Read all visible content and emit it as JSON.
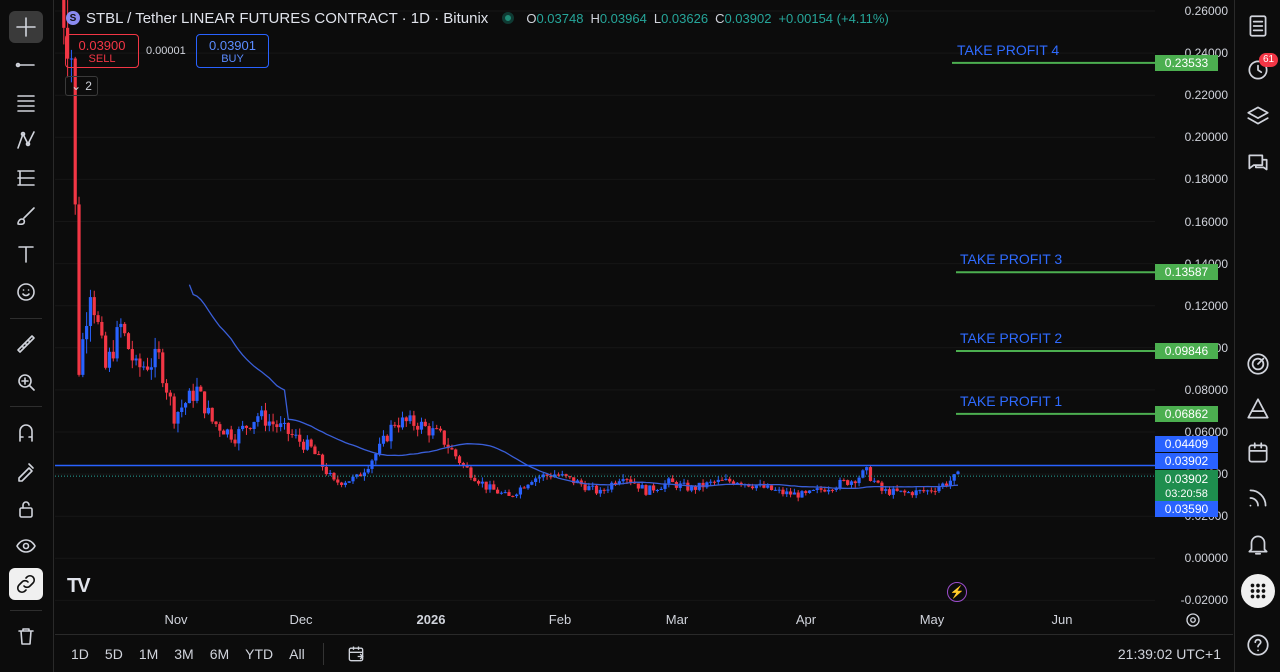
{
  "header": {
    "symbol_icon": "S",
    "title": "STBL / Tether LINEAR FUTURES CONTRACT · 1D · Bitunix",
    "ohlc": [
      {
        "k": "O",
        "v": "0.03748"
      },
      {
        "k": "H",
        "v": "0.03964"
      },
      {
        "k": "L",
        "v": "0.03626"
      },
      {
        "k": "C",
        "v": "0.03902"
      },
      {
        "k": "",
        "v": "+0.00154 (+4.11%)"
      }
    ]
  },
  "trade": {
    "sell_price": "0.03900",
    "sell_label": "SELL",
    "spread": "0.00001",
    "buy_price": "0.03901",
    "buy_label": "BUY",
    "collapse_count": "2"
  },
  "y_axis": [
    "0.26000",
    "0.24000",
    "0.22000",
    "0.20000",
    "0.18000",
    "0.16000",
    "0.14000",
    "0.12000",
    "0.10000",
    "0.08000",
    "0.06000",
    "0.04000",
    "0.02000",
    "0.00000",
    "-0.02000"
  ],
  "x_axis": [
    "Nov",
    "Dec",
    "2026",
    "Feb",
    "Mar",
    "Apr",
    "May",
    "Jun"
  ],
  "take_profits": [
    {
      "label": "TAKE PROFIT 4",
      "price": "0.23533"
    },
    {
      "label": "TAKE PROFIT 3",
      "price": "0.13587"
    },
    {
      "label": "TAKE PROFIT 2",
      "price": "0.09846"
    },
    {
      "label": "TAKE PROFIT 1",
      "price": "0.06862"
    }
  ],
  "price_tags": {
    "hline": "0.04409",
    "last": "0.03902",
    "current": "0.03902",
    "countdown": "03:20:58",
    "low": "0.03590"
  },
  "logo": "TV",
  "bottom": {
    "ranges": [
      "1D",
      "5D",
      "1M",
      "3M",
      "6M",
      "YTD",
      "All"
    ],
    "clock": "21:39:02 UTC+1"
  },
  "sidebar": {
    "alerts_badge": "61"
  },
  "colors": {
    "up": "#2962ff",
    "down": "#f23645",
    "take_profit_line": "#4caf50",
    "horizontal_line": "#2962ff",
    "ma": "#3a5fd9"
  },
  "chart_data": {
    "type": "candlestick",
    "title": "STBL / Tether LINEAR FUTURES CONTRACT · 1D · Bitunix",
    "ylim": [
      -0.02,
      0.26
    ],
    "last_close": 0.03902,
    "horizontal_line": 0.04409,
    "take_profit_levels": [
      0.23533,
      0.13587,
      0.09846,
      0.06862
    ],
    "approx_closes_by_month": [
      {
        "x": "Oct (late)",
        "y": 0.09
      },
      {
        "x": "Nov",
        "y": 0.07
      },
      {
        "x": "Dec",
        "y": 0.045
      },
      {
        "x": "2026 Jan",
        "y": 0.062
      },
      {
        "x": "Feb",
        "y": 0.035
      },
      {
        "x": "Mar",
        "y": 0.038
      },
      {
        "x": "Apr",
        "y": 0.033
      },
      {
        "x": "May",
        "y": 0.039
      }
    ]
  }
}
